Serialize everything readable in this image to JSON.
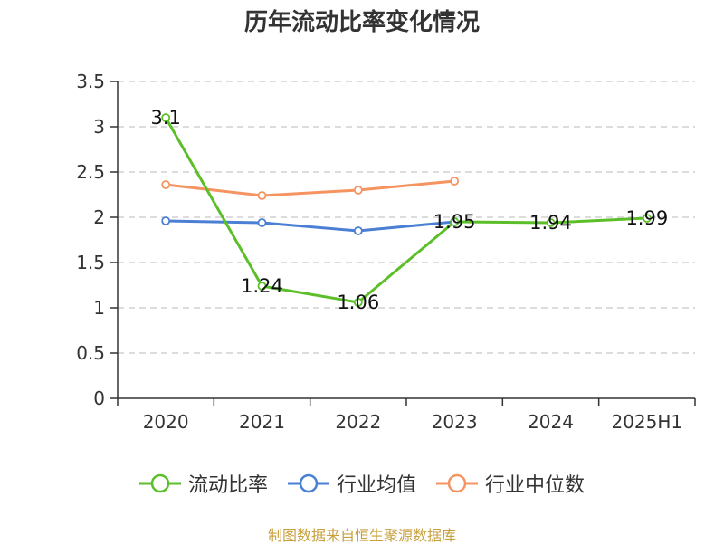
{
  "chart_data": {
    "type": "line",
    "title": "历年流动比率变化情况",
    "categories": [
      "2020",
      "2021",
      "2022",
      "2023",
      "2024",
      "2025H1"
    ],
    "ylim": [
      0,
      3.5
    ],
    "yticks": [
      "0",
      "0.5",
      "1",
      "1.5",
      "2",
      "2.5",
      "3",
      "3.5"
    ],
    "grid": true,
    "legend_position": "bottom",
    "series": [
      {
        "name": "流动比率",
        "color": "#5cbf2a",
        "values": [
          3.1,
          1.24,
          1.06,
          1.95,
          1.94,
          1.99
        ],
        "data_labels": [
          "3.1",
          "1.24",
          "1.06",
          "1.95",
          "1.94",
          "1.99"
        ]
      },
      {
        "name": "行业均值",
        "color": "#4a7fd4",
        "values": [
          1.96,
          1.94,
          1.85,
          1.95,
          null,
          null
        ]
      },
      {
        "name": "行业中位数",
        "color": "#f59460",
        "values": [
          2.36,
          2.24,
          2.3,
          2.4,
          null,
          null
        ]
      }
    ]
  },
  "footer": {
    "source": "制图数据来自恒生聚源数据库"
  }
}
